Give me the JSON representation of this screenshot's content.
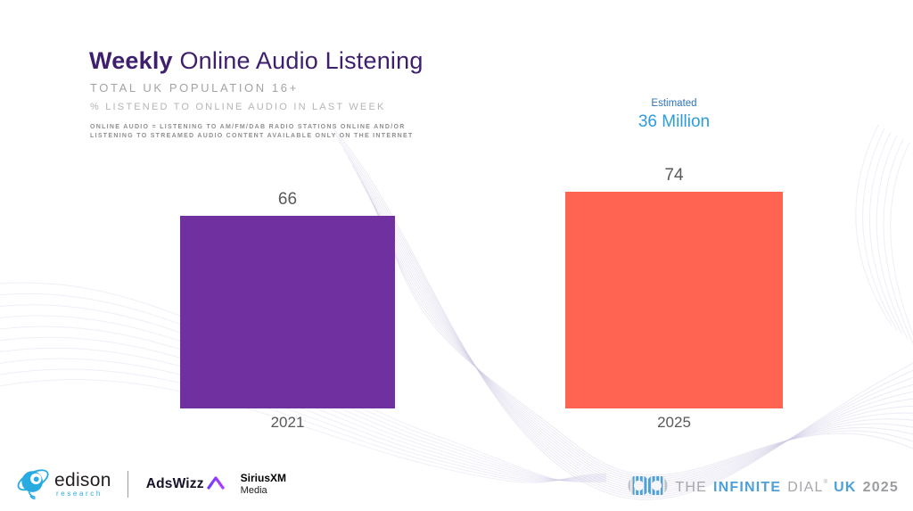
{
  "slide": {
    "title_bold": "Weekly",
    "title_rest": "Online Audio Listening",
    "subtitle1": "TOTAL UK POPULATION 16+",
    "subtitle2": "% LISTENED TO ONLINE AUDIO IN LAST WEEK",
    "definition_line1": "ONLINE AUDIO = LISTENING TO AM/FM/DAB RADIO STATIONS ONLINE AND/OR",
    "definition_line2": "LISTENING TO STREAMED AUDIO CONTENT AVAILABLE ONLY ON THE INTERNET"
  },
  "chart_data": {
    "type": "bar",
    "categories": [
      "2021",
      "2025"
    ],
    "values": [
      66,
      74
    ],
    "bar_colors": [
      "#7030A0",
      "#FF6351"
    ],
    "value_label_color": "#595959",
    "title": "Weekly Online Audio Listening",
    "xlabel": "",
    "ylabel": "% listened to online audio in last week",
    "ylim": [
      0,
      100
    ],
    "grid": false,
    "legend": "none",
    "annotation": {
      "label": "Estimated",
      "value": "36 Million",
      "over_category": "2025",
      "label_color": "#2E74B5",
      "value_color": "#2D9CDB"
    }
  },
  "footer": {
    "edison_name": "edison",
    "edison_sub": "research",
    "adswizz_label": "AdsWizz",
    "siriusxm_line1": "SiriusXM",
    "siriusxm_line2": "Media",
    "brand": {
      "word_the": "THE",
      "word_infinite": "INFINITE",
      "word_dial": "DIAL",
      "dial_mark": "®",
      "word_uk": "UK",
      "word_year": "2025"
    }
  },
  "colors": {
    "title": "#3D1F6E",
    "bar_2021": "#7030A0",
    "bar_2025": "#FF6351",
    "estimate_blue": "#2D9CDB",
    "brand_blue": "#4DA0D8",
    "edison_blue": "#29ABE2"
  }
}
